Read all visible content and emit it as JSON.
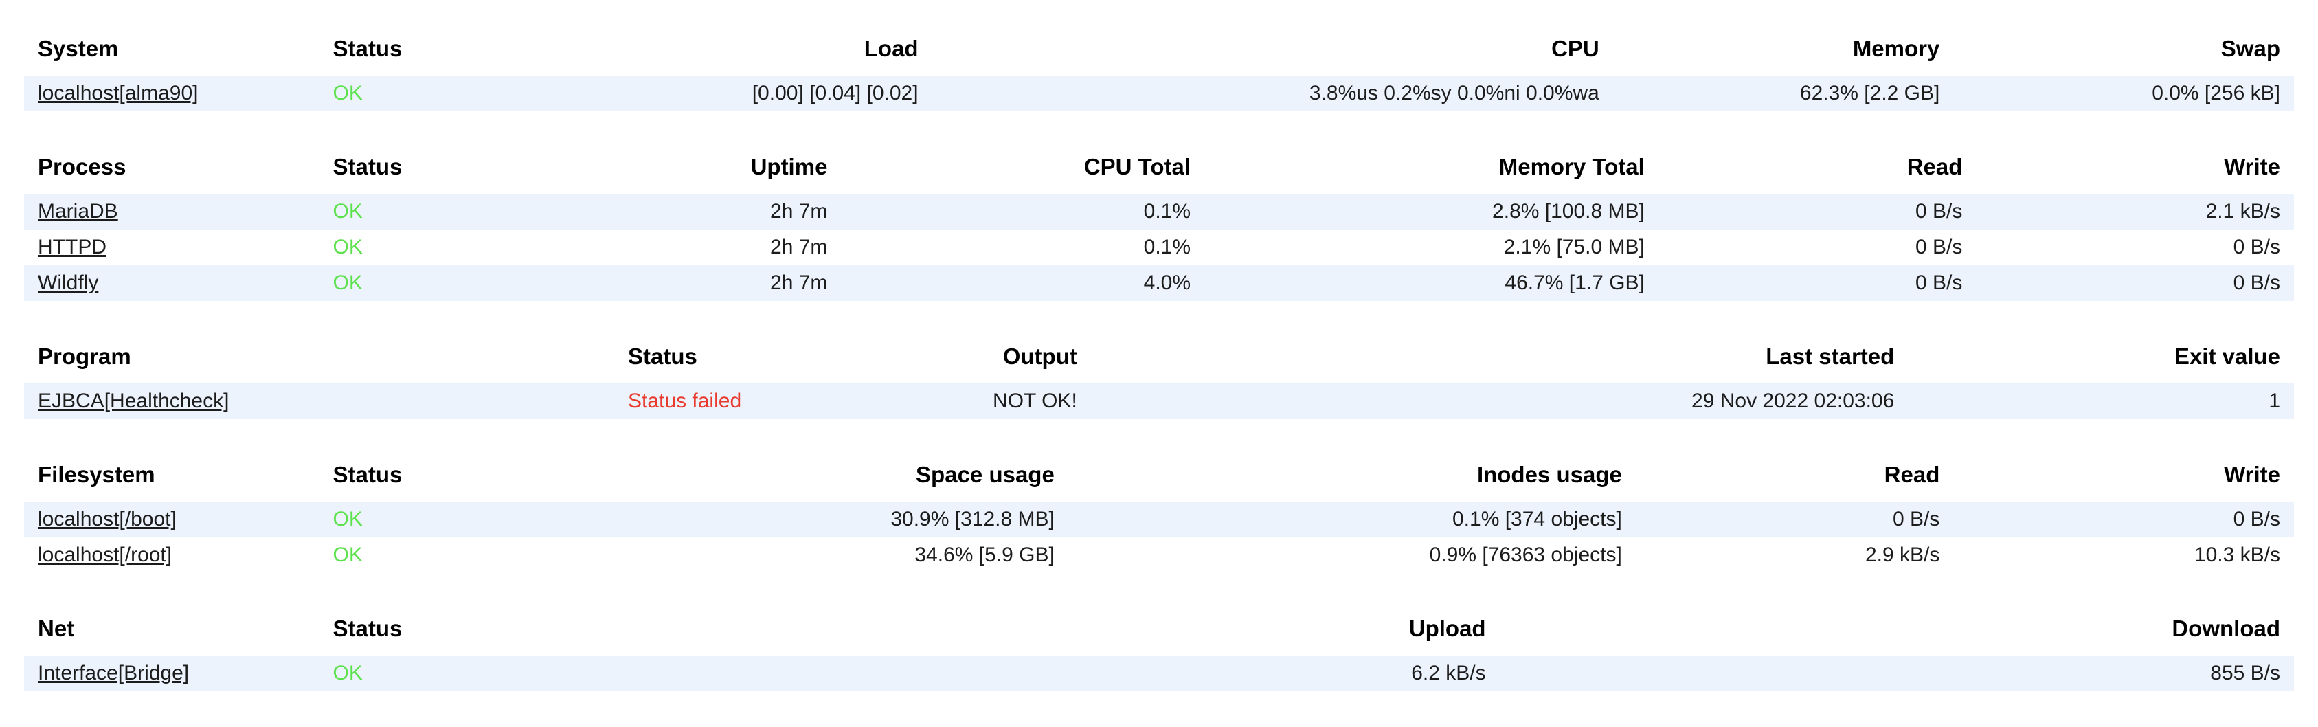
{
  "colors": {
    "ok_text": "#5be24b",
    "failed_text": "#e9392c",
    "row_stripe": "#ecf3fd",
    "header_text": "#000000",
    "body_text": "#1c1c1c"
  },
  "tables": [
    {
      "name": "system",
      "columns": [
        {
          "label": "System",
          "align": "left",
          "width": "13%"
        },
        {
          "label": "Status",
          "align": "left",
          "width": "8%"
        },
        {
          "label": "Load",
          "align": "right",
          "width": "19%"
        },
        {
          "label": "CPU",
          "align": "right",
          "width": "30%"
        },
        {
          "label": "Memory",
          "align": "right",
          "width": "15%"
        },
        {
          "label": "Swap",
          "align": "right",
          "width": "15%"
        }
      ],
      "rows": [
        {
          "status": "ok",
          "cells": [
            "localhost[alma90]",
            "OK",
            "[0.00] [0.04] [0.02]",
            "3.8%us 0.2%sy 0.0%ni 0.0%wa",
            "62.3% [2.2 GB]",
            "0.0% [256 kB]"
          ]
        }
      ]
    },
    {
      "name": "process",
      "columns": [
        {
          "label": "Process",
          "align": "left",
          "width": "13%"
        },
        {
          "label": "Status",
          "align": "left",
          "width": "8%"
        },
        {
          "label": "Uptime",
          "align": "right",
          "width": "15%"
        },
        {
          "label": "CPU Total",
          "align": "right",
          "width": "16%"
        },
        {
          "label": "Memory Total",
          "align": "right",
          "width": "20%"
        },
        {
          "label": "Read",
          "align": "right",
          "width": "14%"
        },
        {
          "label": "Write",
          "align": "right",
          "width": "14%"
        }
      ],
      "rows": [
        {
          "status": "ok",
          "cells": [
            "MariaDB",
            "OK",
            "2h 7m",
            "0.1%",
            "2.8% [100.8 MB]",
            "0 B/s",
            "2.1 kB/s"
          ]
        },
        {
          "status": "ok",
          "cells": [
            "HTTPD",
            "OK",
            "2h 7m",
            "0.1%",
            "2.1% [75.0 MB]",
            "0 B/s",
            "0 B/s"
          ]
        },
        {
          "status": "ok",
          "cells": [
            "Wildfly",
            "OK",
            "2h 7m",
            "4.0%",
            "46.7% [1.7 GB]",
            "0 B/s",
            "0 B/s"
          ]
        }
      ]
    },
    {
      "name": "program",
      "columns": [
        {
          "label": "Program",
          "align": "left",
          "width": "26%"
        },
        {
          "label": "Status",
          "align": "left",
          "width": "10%"
        },
        {
          "label": "Output",
          "align": "right",
          "width": "11%"
        },
        {
          "label": "Last started",
          "align": "right",
          "width": "36%"
        },
        {
          "label": "Exit value",
          "align": "right",
          "width": "17%"
        }
      ],
      "rows": [
        {
          "status": "failed",
          "cells": [
            "EJBCA[Healthcheck]",
            "Status failed",
            "NOT OK!",
            "29 Nov 2022 02:03:06",
            "1"
          ]
        }
      ]
    },
    {
      "name": "filesystem",
      "columns": [
        {
          "label": "Filesystem",
          "align": "left",
          "width": "13%"
        },
        {
          "label": "Status",
          "align": "left",
          "width": "8%"
        },
        {
          "label": "Space usage",
          "align": "right",
          "width": "25%"
        },
        {
          "label": "Inodes usage",
          "align": "right",
          "width": "25%"
        },
        {
          "label": "Read",
          "align": "right",
          "width": "14%"
        },
        {
          "label": "Write",
          "align": "right",
          "width": "15%"
        }
      ],
      "rows": [
        {
          "status": "ok",
          "cells": [
            "localhost[/boot]",
            "OK",
            "30.9% [312.8 MB]",
            "0.1% [374 objects]",
            "0 B/s",
            "0 B/s"
          ]
        },
        {
          "status": "ok",
          "cells": [
            "localhost[/root]",
            "OK",
            "34.6% [5.9 GB]",
            "0.9% [76363 objects]",
            "2.9 kB/s",
            "10.3 kB/s"
          ]
        }
      ]
    },
    {
      "name": "net",
      "columns": [
        {
          "label": "Net",
          "align": "left",
          "width": "13%"
        },
        {
          "label": "Status",
          "align": "left",
          "width": "8%"
        },
        {
          "label": "Upload",
          "align": "right",
          "width": "44%"
        },
        {
          "label": "Download",
          "align": "right",
          "width": "35%"
        }
      ],
      "rows": [
        {
          "status": "ok",
          "cells": [
            "Interface[Bridge]",
            "OK",
            "6.2 kB/s",
            "855 B/s"
          ]
        }
      ]
    }
  ]
}
